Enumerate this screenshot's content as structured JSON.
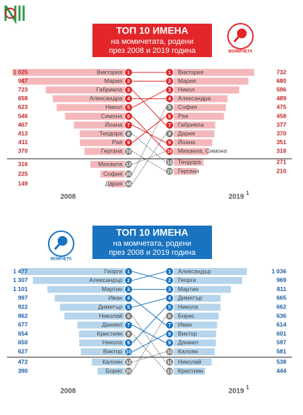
{
  "chart_data": [
    {
      "type": "rank-bar",
      "title": "ТОП 10 ИМЕНА",
      "subtitle": [
        "на момичетата, родени",
        "през 2008 и 2019 година"
      ],
      "icon_label": "МОМИЧЕТА",
      "theme": "#e2262a",
      "bar_color": "#f5b8ba",
      "text_color": "#c0282d",
      "footnote_mark": "1",
      "left": {
        "label": "2008",
        "names": [
          "Виктория",
          "Мария",
          "Габриела",
          "Александра",
          "Никол",
          "Симона",
          "Йоана",
          "Теодора",
          "Рая",
          "Гергана",
          "Михаела",
          "София",
          "Дария"
        ],
        "values": [
          1025,
          947,
          723,
          658,
          623,
          546,
          467,
          413,
          411,
          370,
          316,
          225,
          149
        ],
        "value_labels": [
          "1 025",
          "947",
          "723",
          "658",
          "623",
          "546",
          "467",
          "413",
          "411",
          "370",
          "316",
          "225",
          "149"
        ],
        "ranks": [
          1,
          2,
          3,
          4,
          5,
          6,
          7,
          8,
          9,
          10,
          13,
          20,
          48
        ]
      },
      "right": {
        "label": "2019",
        "names": [
          "Виктория",
          "Мария",
          "Никол",
          "Александра",
          "София",
          "Рая",
          "Габриела",
          "Дария",
          "Йоана",
          "Михаела, Симона",
          "Теодора",
          "Гергана"
        ],
        "values": [
          732,
          680,
          596,
          489,
          475,
          458,
          377,
          370,
          351,
          318,
          271,
          210
        ],
        "value_labels": [
          "732",
          "680",
          "596",
          "489",
          "475",
          "458",
          "377",
          "370",
          "351",
          "318",
          "271",
          "210"
        ],
        "ranks": [
          1,
          2,
          3,
          4,
          5,
          6,
          7,
          8,
          9,
          10,
          13,
          15
        ]
      }
    },
    {
      "type": "rank-bar",
      "title": "ТОП 10 ИМЕНА",
      "subtitle": [
        "на момчетата, родени",
        "през 2008 и 2019 година"
      ],
      "icon_label": "МОМЧЕТА",
      "theme": "#1a73c0",
      "bar_color": "#b6d5ec",
      "text_color": "#1f5fa8",
      "footnote_mark": "1",
      "left": {
        "label": "2008",
        "names": [
          "Георги",
          "Александър",
          "Мартин",
          "Иван",
          "Димитър",
          "Николай",
          "Даниел",
          "Кристиян",
          "Никола",
          "Виктор",
          "Калоян",
          "Борис"
        ],
        "values": [
          1477,
          1307,
          1101,
          997,
          922,
          862,
          677,
          654,
          650,
          627,
          472,
          390
        ],
        "value_labels": [
          "1 477",
          "1 307",
          "1 101",
          "997",
          "922",
          "862",
          "677",
          "654",
          "650",
          "627",
          "472",
          "390"
        ],
        "ranks": [
          1,
          2,
          3,
          4,
          5,
          6,
          7,
          8,
          9,
          10,
          12,
          20
        ]
      },
      "right": {
        "label": "2019",
        "names": [
          "Александър",
          "Георги",
          "Мартин",
          "Димитър",
          "Никола",
          "Борис",
          "Иван",
          "Виктор",
          "Даниел",
          "Калоян",
          "Николай",
          "Кристиян"
        ],
        "values": [
          1036,
          969,
          811,
          665,
          662,
          636,
          614,
          601,
          597,
          581,
          538,
          444
        ],
        "value_labels": [
          "1 036",
          "969",
          "811",
          "665",
          "662",
          "636",
          "614",
          "601",
          "597",
          "581",
          "538",
          "444"
        ],
        "ranks": [
          1,
          2,
          3,
          4,
          5,
          6,
          7,
          8,
          9,
          10,
          11,
          13
        ]
      }
    }
  ]
}
